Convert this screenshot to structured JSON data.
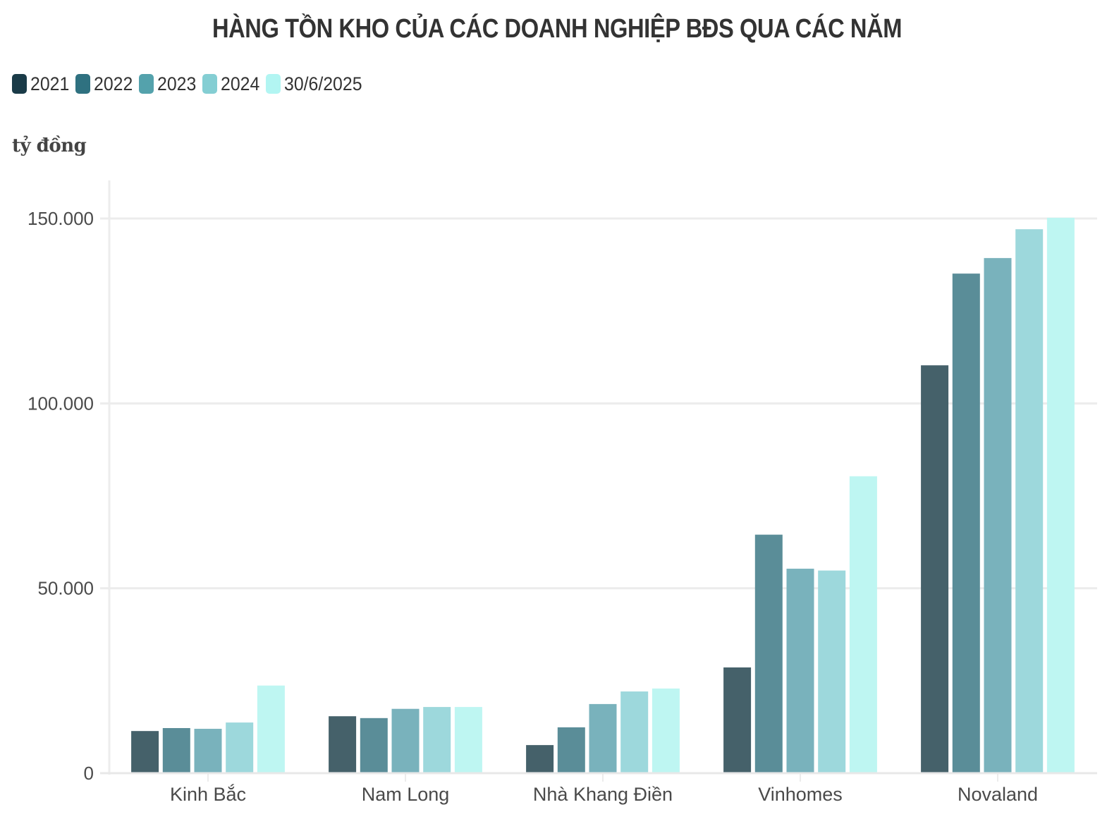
{
  "title": "HÀNG TỒN KHO CỦA CÁC DOANH NGHIỆP BĐS QUA CÁC NĂM",
  "unit_label": "tỷ đồng",
  "legend": [
    {
      "label": "2021",
      "color": "#1a3b48"
    },
    {
      "label": "2022",
      "color": "#2f7180"
    },
    {
      "label": "2023",
      "color": "#54a2ac"
    },
    {
      "label": "2024",
      "color": "#84ced3"
    },
    {
      "label": "30/6/2025",
      "color": "#b2f5f2"
    }
  ],
  "bar_colors": [
    "#45616a",
    "#5a8d98",
    "#79b2bc",
    "#9dd8dc",
    "#bef6f2"
  ],
  "y_ticks": [
    {
      "value": 0,
      "label": "0"
    },
    {
      "value": 50000,
      "label": "50.000"
    },
    {
      "value": 100000,
      "label": "100.000"
    },
    {
      "value": 150000,
      "label": "150.000"
    }
  ],
  "chart_data": {
    "type": "bar",
    "title": "HÀNG TỒN KHO CỦA CÁC DOANH NGHIỆP BĐS QUA CÁC NĂM",
    "xlabel": "",
    "ylabel": "tỷ đồng",
    "ylim": [
      0,
      160000
    ],
    "grid": true,
    "legend_position": "top-left",
    "categories": [
      "Kinh Bắc",
      "Nam Long",
      "Nhà Khang Điền",
      "Vinhomes",
      "Novaland"
    ],
    "series": [
      {
        "name": "2021",
        "values": [
          11400,
          15400,
          7600,
          28600,
          110300
        ]
      },
      {
        "name": "2022",
        "values": [
          12200,
          14900,
          12400,
          64500,
          135100
        ]
      },
      {
        "name": "2023",
        "values": [
          12000,
          17400,
          18700,
          55300,
          139300
        ]
      },
      {
        "name": "2024",
        "values": [
          13700,
          17900,
          22100,
          54800,
          147100
        ]
      },
      {
        "name": "30/6/2025",
        "values": [
          23700,
          17900,
          22900,
          80300,
          150200
        ]
      }
    ]
  }
}
